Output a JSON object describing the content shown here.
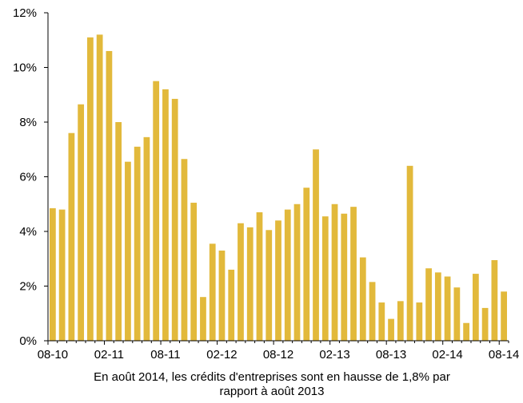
{
  "chart_data": {
    "type": "bar",
    "title": "",
    "xlabel": "",
    "ylabel": "",
    "ylim": [
      0,
      12
    ],
    "y_ticks": [
      "0%",
      "2%",
      "4%",
      "6%",
      "8%",
      "10%",
      "12%"
    ],
    "y_tick_values": [
      0,
      2,
      4,
      6,
      8,
      10,
      12
    ],
    "x_tick_labels": [
      "08-10",
      "02-11",
      "08-11",
      "02-12",
      "08-12",
      "02-13",
      "08-13",
      "02-14",
      "08-14"
    ],
    "x_tick_every": 6,
    "bar_color": "#E2B93B",
    "grid": false,
    "values": [
      4.85,
      4.8,
      7.6,
      8.65,
      11.1,
      11.2,
      10.6,
      8.0,
      6.55,
      7.1,
      7.45,
      9.5,
      9.2,
      8.85,
      6.65,
      5.05,
      1.6,
      3.55,
      3.3,
      2.6,
      4.3,
      4.15,
      4.7,
      4.05,
      4.4,
      4.8,
      5.0,
      5.6,
      7.0,
      4.55,
      5.0,
      4.65,
      4.9,
      3.05,
      2.15,
      1.4,
      0.8,
      1.45,
      6.4,
      1.4,
      2.65,
      2.5,
      2.35,
      1.95,
      0.65,
      2.45,
      1.2,
      2.95,
      1.8
    ]
  },
  "caption": {
    "line1": "En août 2014, les crédits d'entreprises sont en hausse de 1,8% par",
    "line2": "rapport à août 2013"
  }
}
